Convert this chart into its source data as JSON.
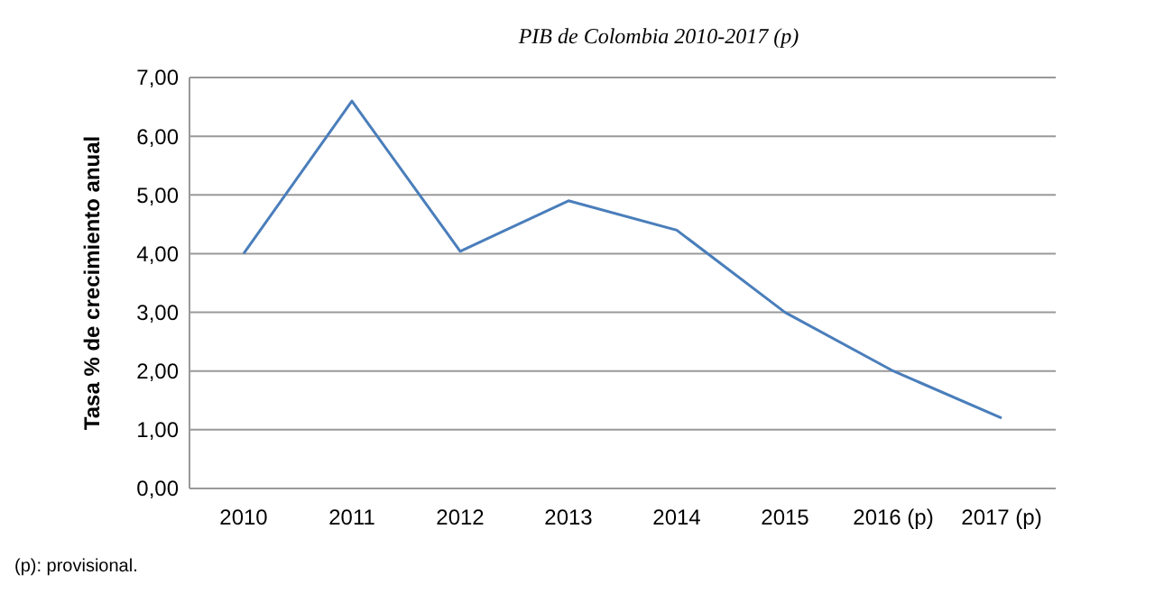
{
  "chart_data": {
    "type": "line",
    "title": "PIB de Colombia 2010-2017 (p)",
    "ylabel": "Tasa % de crecimiento anual",
    "categories": [
      "2010",
      "2011",
      "2012",
      "2013",
      "2014",
      "2015",
      "2016 (p)",
      "2017 (p)"
    ],
    "series": [
      {
        "color": "#4a7ebb",
        "values": [
          4.0,
          6.6,
          4.04,
          4.9,
          4.4,
          3.0,
          2.0,
          1.2
        ]
      }
    ],
    "ylim": [
      0,
      7
    ],
    "yticks": [
      {
        "value": 0,
        "label": "0,00"
      },
      {
        "value": 1,
        "label": "1,00"
      },
      {
        "value": 2,
        "label": "2,00"
      },
      {
        "value": 3,
        "label": "3,00"
      },
      {
        "value": 4,
        "label": "4,00"
      },
      {
        "value": 5,
        "label": "5,00"
      },
      {
        "value": 6,
        "label": "6,00"
      },
      {
        "value": 7,
        "label": "7,00"
      }
    ],
    "grid": "y",
    "marker": "none",
    "line_style": "solid",
    "annotations": [
      "(p): provisional."
    ]
  }
}
